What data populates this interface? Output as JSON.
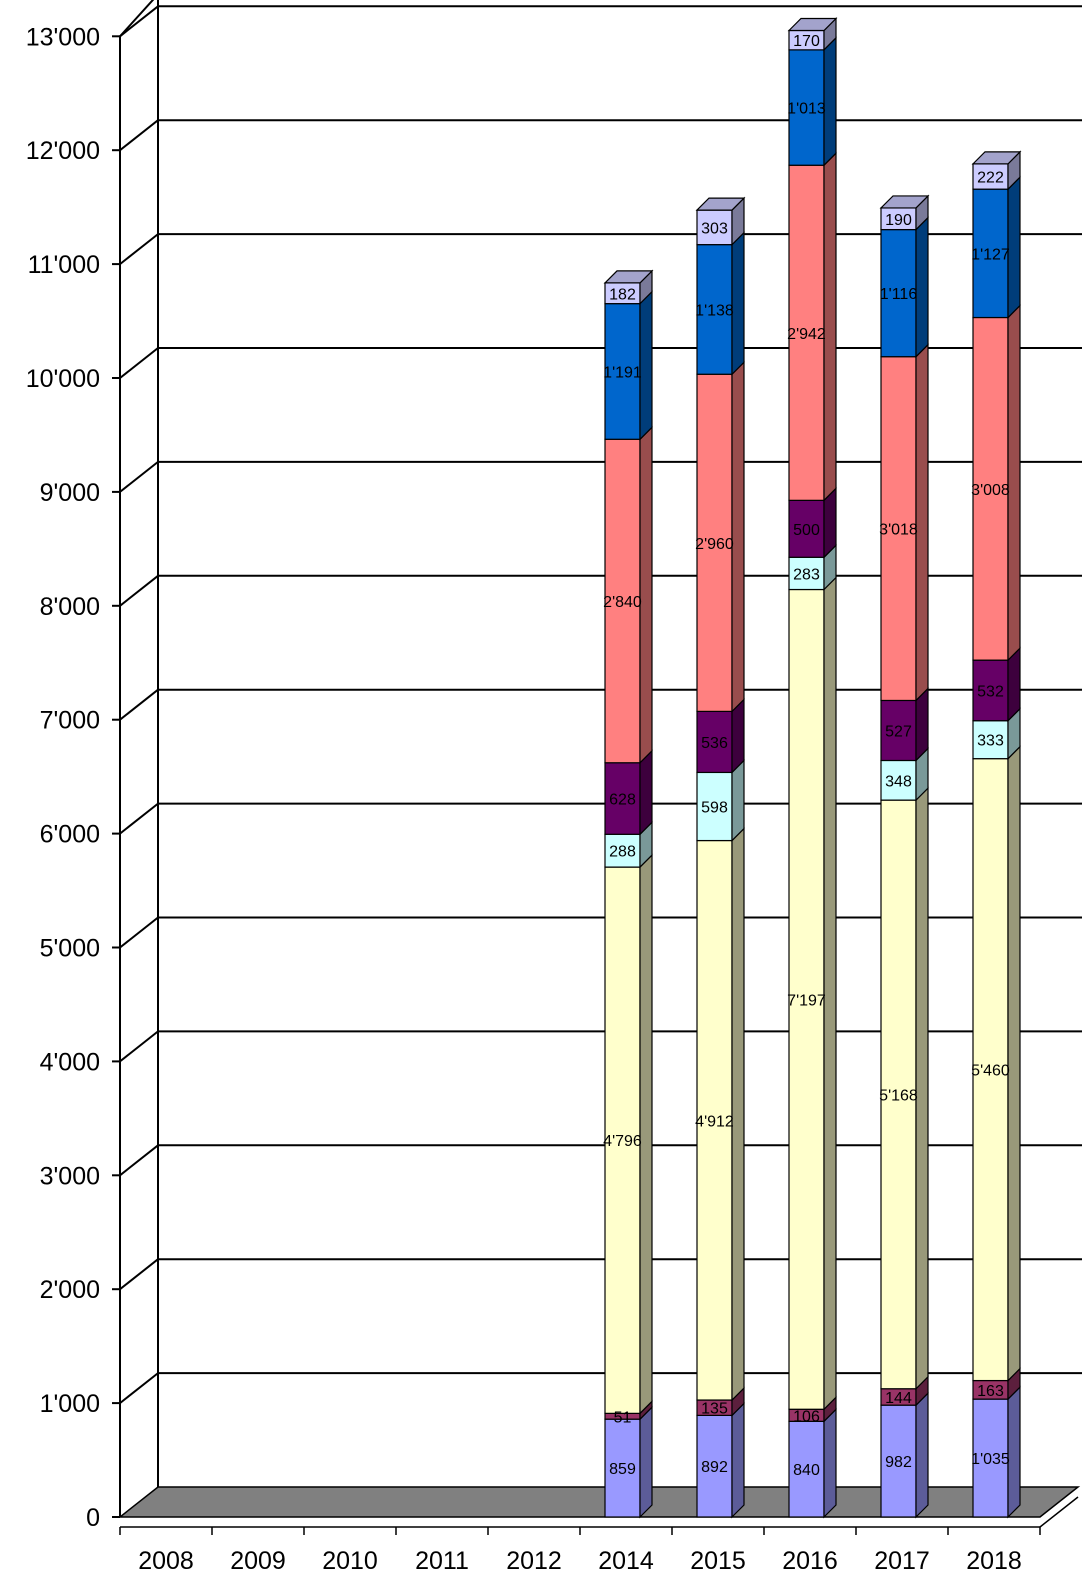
{
  "chart_data": {
    "type": "bar",
    "stacked": true,
    "three_d": true,
    "title": "",
    "xlabel": "",
    "ylabel": "",
    "ylim": [
      0,
      13000
    ],
    "yticks": [
      0,
      1000,
      2000,
      3000,
      4000,
      5000,
      6000,
      7000,
      8000,
      9000,
      10000,
      11000,
      12000,
      13000
    ],
    "ytick_labels": [
      "0",
      "1'000",
      "2'000",
      "3'000",
      "4'000",
      "5'000",
      "6'000",
      "7'000",
      "8'000",
      "9'000",
      "10'000",
      "11'000",
      "12'000",
      "13'000"
    ],
    "grid": true,
    "legend": "none",
    "categories": [
      "2008",
      "2009",
      "2010",
      "2011",
      "2012",
      "2014",
      "2015",
      "2016",
      "2017",
      "2018"
    ],
    "series": [
      {
        "color": "#9999ff",
        "values": [
          null,
          null,
          null,
          null,
          null,
          859,
          892,
          840,
          982,
          1035
        ],
        "labels": [
          "",
          "",
          "",
          "",
          "",
          "859",
          "892",
          "840",
          "982",
          "1'035"
        ]
      },
      {
        "color": "#993366",
        "values": [
          null,
          null,
          null,
          null,
          null,
          51,
          135,
          106,
          144,
          163
        ],
        "labels": [
          "",
          "",
          "",
          "",
          "",
          "51",
          "135",
          "106",
          "144",
          "163"
        ]
      },
      {
        "color": "#ffffcc",
        "values": [
          null,
          null,
          null,
          null,
          null,
          4796,
          4912,
          7197,
          5168,
          5460
        ],
        "labels": [
          "",
          "",
          "",
          "",
          "",
          "4'796",
          "4'912",
          "7'197",
          "5'168",
          "5'460"
        ]
      },
      {
        "color": "#ccffff",
        "values": [
          null,
          null,
          null,
          null,
          null,
          288,
          598,
          283,
          348,
          333
        ],
        "labels": [
          "",
          "",
          "",
          "",
          "",
          "288",
          "598",
          "283",
          "348",
          "333"
        ]
      },
      {
        "color": "#660066",
        "values": [
          null,
          null,
          null,
          null,
          null,
          628,
          536,
          500,
          527,
          532
        ],
        "labels": [
          "",
          "",
          "",
          "",
          "",
          "628",
          "536",
          "500",
          "527",
          "532"
        ]
      },
      {
        "color": "#ff8080",
        "values": [
          null,
          null,
          null,
          null,
          null,
          2840,
          2960,
          2942,
          3018,
          3008
        ],
        "labels": [
          "",
          "",
          "",
          "",
          "",
          "2'840",
          "2'960",
          "2'942",
          "3'018",
          "3'008"
        ]
      },
      {
        "color": "#0066cc",
        "values": [
          null,
          null,
          null,
          null,
          null,
          1191,
          1138,
          1013,
          1116,
          1127
        ],
        "labels": [
          "",
          "",
          "",
          "",
          "",
          "1'191",
          "1'138",
          "1'013",
          "1'116",
          "1'127"
        ]
      },
      {
        "color": "#ccccff",
        "values": [
          null,
          null,
          null,
          null,
          null,
          182,
          303,
          170,
          190,
          222
        ],
        "labels": [
          "",
          "",
          "",
          "",
          "",
          "182",
          "303",
          "170",
          "190",
          "222"
        ]
      }
    ]
  }
}
